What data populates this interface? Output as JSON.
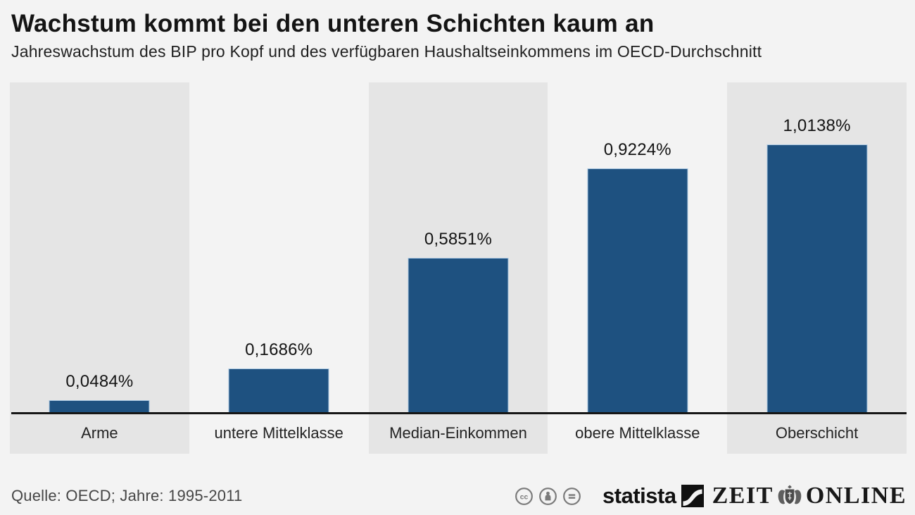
{
  "header": {
    "title": "Wachstum kommt bei den unteren Schichten kaum an",
    "subtitle": "Jahreswachstum des BIP pro Kopf und des verfügbaren Haushaltseinkommens im OECD-Durchschnitt"
  },
  "chart_data": {
    "type": "bar",
    "title": "Wachstum kommt bei den unteren Schichten kaum an",
    "subtitle": "Jahreswachstum des BIP pro Kopf und des verfügbaren Haushaltseinkommens im OECD-Durchschnitt",
    "categories": [
      "Arme",
      "untere Mittelklasse",
      "Median-Einkommen",
      "obere Mittelklasse",
      "Oberschicht"
    ],
    "values": [
      0.0484,
      0.1686,
      0.5851,
      0.9224,
      1.0138
    ],
    "display_values": [
      "0,0484%",
      "0,1686%",
      "0,5851%",
      "0,9224%",
      "1,0138%"
    ],
    "unit": "percent",
    "xlabel": "",
    "ylabel": "",
    "ylim": [
      0,
      1.1
    ],
    "grid": false,
    "legend": "none",
    "bar_color": "#1e5180",
    "stripe_color": "#e5e5e5",
    "background_color": "#f3f3f3",
    "axis_line_color": "#161616"
  },
  "footer": {
    "source": "Quelle: OECD; Jahre: 1995-2011",
    "license_icons": [
      "cc-license-icon",
      "cc-attribution-icon",
      "cc-no-derivatives-icon"
    ],
    "statista_label": "statista",
    "zeit_left": "ZEIT",
    "zeit_right": "ONLINE"
  }
}
